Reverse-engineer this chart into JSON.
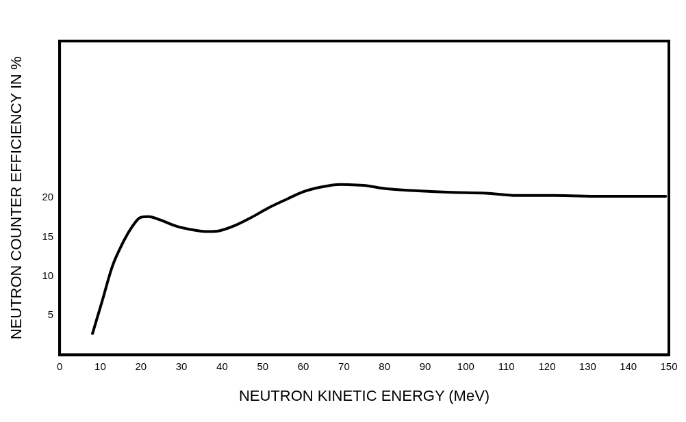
{
  "chart_data": {
    "type": "line",
    "xlabel": "NEUTRON KINETIC ENERGY (MeV)",
    "ylabel": "NEUTRON COUNTER EFFICIENCY IN %",
    "x": [
      8.1,
      10.4,
      13.0,
      15.4,
      17.7,
      19.9,
      21.9,
      24.7,
      28.7,
      32.0,
      36.5,
      39.3,
      43.3,
      47.2,
      51.7,
      56.2,
      60.1,
      64.6,
      69.1,
      74.8,
      79.8,
      88.2,
      96.6,
      105,
      112.4,
      121.9,
      133.2,
      149.2
    ],
    "series": [
      {
        "color": "#000000",
        "values": [
          2.7,
          6.7,
          11.3,
          14.1,
          16.2,
          17.5,
          17.6,
          17.2,
          16.4,
          16.0,
          15.7,
          15.8,
          16.5,
          17.5,
          18.8,
          19.9,
          20.8,
          21.4,
          21.7,
          21.6,
          21.2,
          20.9,
          20.7,
          20.6,
          20.3,
          20.3,
          20.2,
          20.2
        ]
      }
    ],
    "xlim": [
      0,
      150
    ],
    "xticks": [
      0,
      10,
      20,
      30,
      40,
      50,
      60,
      70,
      80,
      90,
      100,
      110,
      120,
      130,
      140,
      150
    ],
    "ylim": [
      0,
      40
    ],
    "yticks": [
      5,
      10,
      15,
      20
    ],
    "grid": false,
    "legend": false
  }
}
